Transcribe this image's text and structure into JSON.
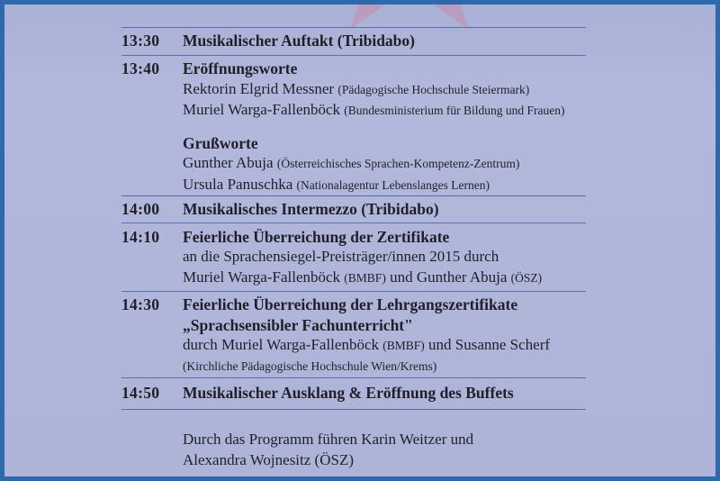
{
  "page": {
    "background": "#afb5d9",
    "frame_color": "#2e69ad",
    "rule_color": "#5c6da8",
    "text_color": "#201f29",
    "star_color": "#c885a5"
  },
  "schedule": {
    "items": [
      {
        "time": "13:30",
        "lines": [
          {
            "style": "bold",
            "segments": [
              {
                "text": "Musikalischer Auftakt (Tribidabo)"
              }
            ]
          }
        ]
      },
      {
        "time": "13:40",
        "lines": [
          {
            "style": "bold",
            "segments": [
              {
                "text": "Eröffnungsworte"
              }
            ]
          },
          {
            "style": "regular",
            "segments": [
              {
                "text": "Rektorin Elgrid Messner "
              },
              {
                "text": "(Pädagogische Hochschule Steiermark)",
                "small": true
              }
            ]
          },
          {
            "style": "regular",
            "segments": [
              {
                "text": "Muriel Warga-Fallenböck "
              },
              {
                "text": "(Bundesministerium für Bildung und Frauen)",
                "small": true
              }
            ]
          },
          {
            "style": "spacer",
            "segments": []
          },
          {
            "style": "bold",
            "segments": [
              {
                "text": "Grußworte"
              }
            ]
          },
          {
            "style": "regular",
            "segments": [
              {
                "text": "Gunther Abuja "
              },
              {
                "text": "(Österreichisches Sprachen-Kompetenz-Zentrum)",
                "small": true
              }
            ]
          },
          {
            "style": "regular",
            "segments": [
              {
                "text": "Ursula Panuschka "
              },
              {
                "text": "(Nationalagentur Lebenslanges Lernen)",
                "small": true
              }
            ]
          }
        ]
      },
      {
        "time": "14:00",
        "lines": [
          {
            "style": "bold",
            "segments": [
              {
                "text": "Musikalisches Intermezzo (Tribidabo)"
              }
            ]
          }
        ]
      },
      {
        "time": "14:10",
        "lines": [
          {
            "style": "bold",
            "segments": [
              {
                "text": "Feierliche Überreichung der Zertifikate"
              }
            ]
          },
          {
            "style": "regular",
            "segments": [
              {
                "text": "an die Sprachensiegel-Preisträger/innen 2015 durch"
              }
            ]
          },
          {
            "style": "regular",
            "segments": [
              {
                "text": "Muriel Warga-Fallenböck "
              },
              {
                "text": "(BMBF)",
                "small": true
              },
              {
                "text": " und Gunther Abuja "
              },
              {
                "text": "(ÖSZ)",
                "small": true
              }
            ]
          }
        ]
      },
      {
        "time": "14:30",
        "lines": [
          {
            "style": "bold",
            "segments": [
              {
                "text": "Feierliche Überreichung der Lehrgangszertifikate"
              }
            ]
          },
          {
            "style": "bold",
            "segments": [
              {
                "text": "„Sprachsensibler Fachunterricht\""
              }
            ]
          },
          {
            "style": "regular",
            "segments": [
              {
                "text": "durch Muriel Warga-Fallenböck "
              },
              {
                "text": "(BMBF)",
                "small": true
              },
              {
                "text": " und Susanne Scherf"
              }
            ]
          },
          {
            "style": "small",
            "segments": [
              {
                "text": "(Kirchliche Pädagogische Hochschule Wien/Krems)"
              }
            ]
          }
        ]
      },
      {
        "time": "14:50",
        "lines": [
          {
            "style": "bold",
            "segments": [
              {
                "text": "Musikalischer Ausklang & Eröffnung des Buffets"
              }
            ]
          }
        ]
      }
    ],
    "footer_lines": [
      "Durch das Programm führen Karin Weitzer und",
      "Alexandra Wojnesitz (ÖSZ)"
    ]
  }
}
